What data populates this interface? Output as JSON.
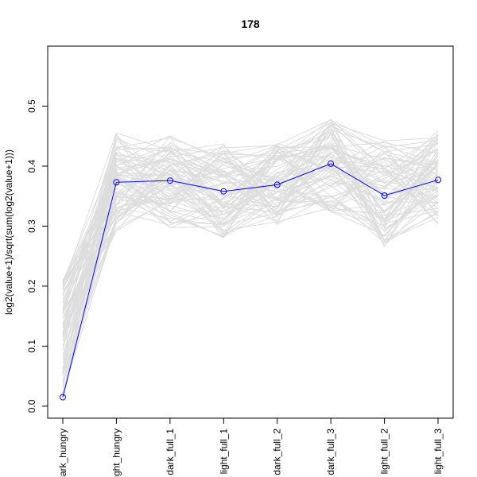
{
  "chart_data": {
    "type": "line",
    "title": "178",
    "xlabel": "",
    "ylabel": "log2(value+1)/sqrt(sum(log2(value+1)))",
    "categories": [
      "dark_hungry",
      "light_hungry",
      "dark_full_1",
      "light_full_1",
      "dark_full_2",
      "dark_full_3",
      "light_full_2",
      "light_full_3"
    ],
    "ylim": [
      0.0,
      0.55
    ],
    "yticks": [
      0.0,
      0.1,
      0.2,
      0.3,
      0.4,
      0.5
    ],
    "grid": false,
    "legend": "none",
    "series": [
      {
        "values": [
          0.015,
          0.373,
          0.376,
          0.358,
          0.369,
          0.404,
          0.351,
          0.377
        ],
        "color": "#0000ff",
        "highlight": true
      }
    ],
    "background_series_color": "#dddddd",
    "background_series_count": 80
  }
}
